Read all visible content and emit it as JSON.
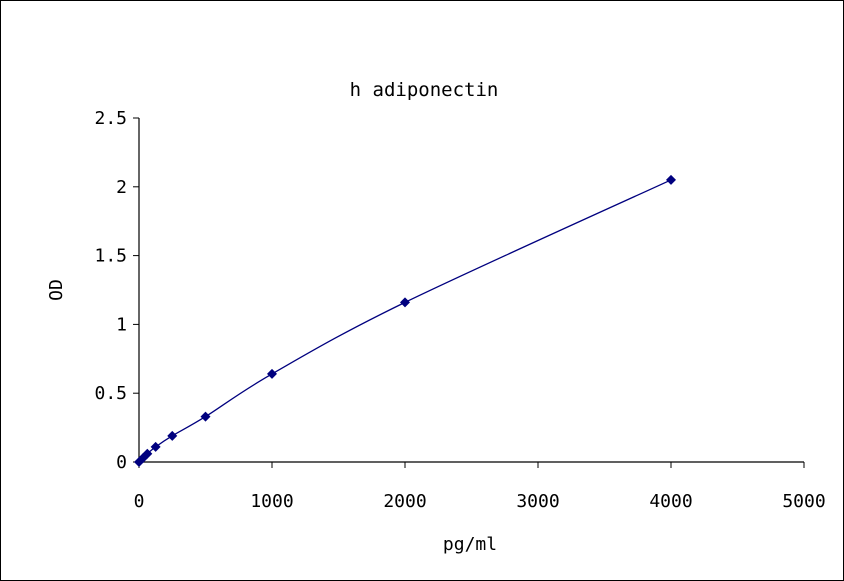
{
  "chart_data": {
    "type": "scatter",
    "title": "h adiponectin",
    "xlabel": "pg/ml",
    "ylabel": "OD",
    "xlim": [
      0,
      5000
    ],
    "ylim": [
      0,
      2.5
    ],
    "x_ticks": [
      "0",
      "1000",
      "2000",
      "3000",
      "4000",
      "5000"
    ],
    "y_ticks": [
      "0",
      "0.5",
      "1",
      "1.5",
      "2",
      "2.5"
    ],
    "grid": false,
    "legend": "none",
    "series": [
      {
        "x": [
          0,
          31.25,
          62.5,
          125,
          250,
          500,
          1000,
          2000,
          4000
        ],
        "y": [
          0.0,
          0.03,
          0.06,
          0.11,
          0.19,
          0.33,
          0.64,
          1.16,
          2.05
        ],
        "color": "#00007F",
        "trendline": true
      }
    ]
  }
}
